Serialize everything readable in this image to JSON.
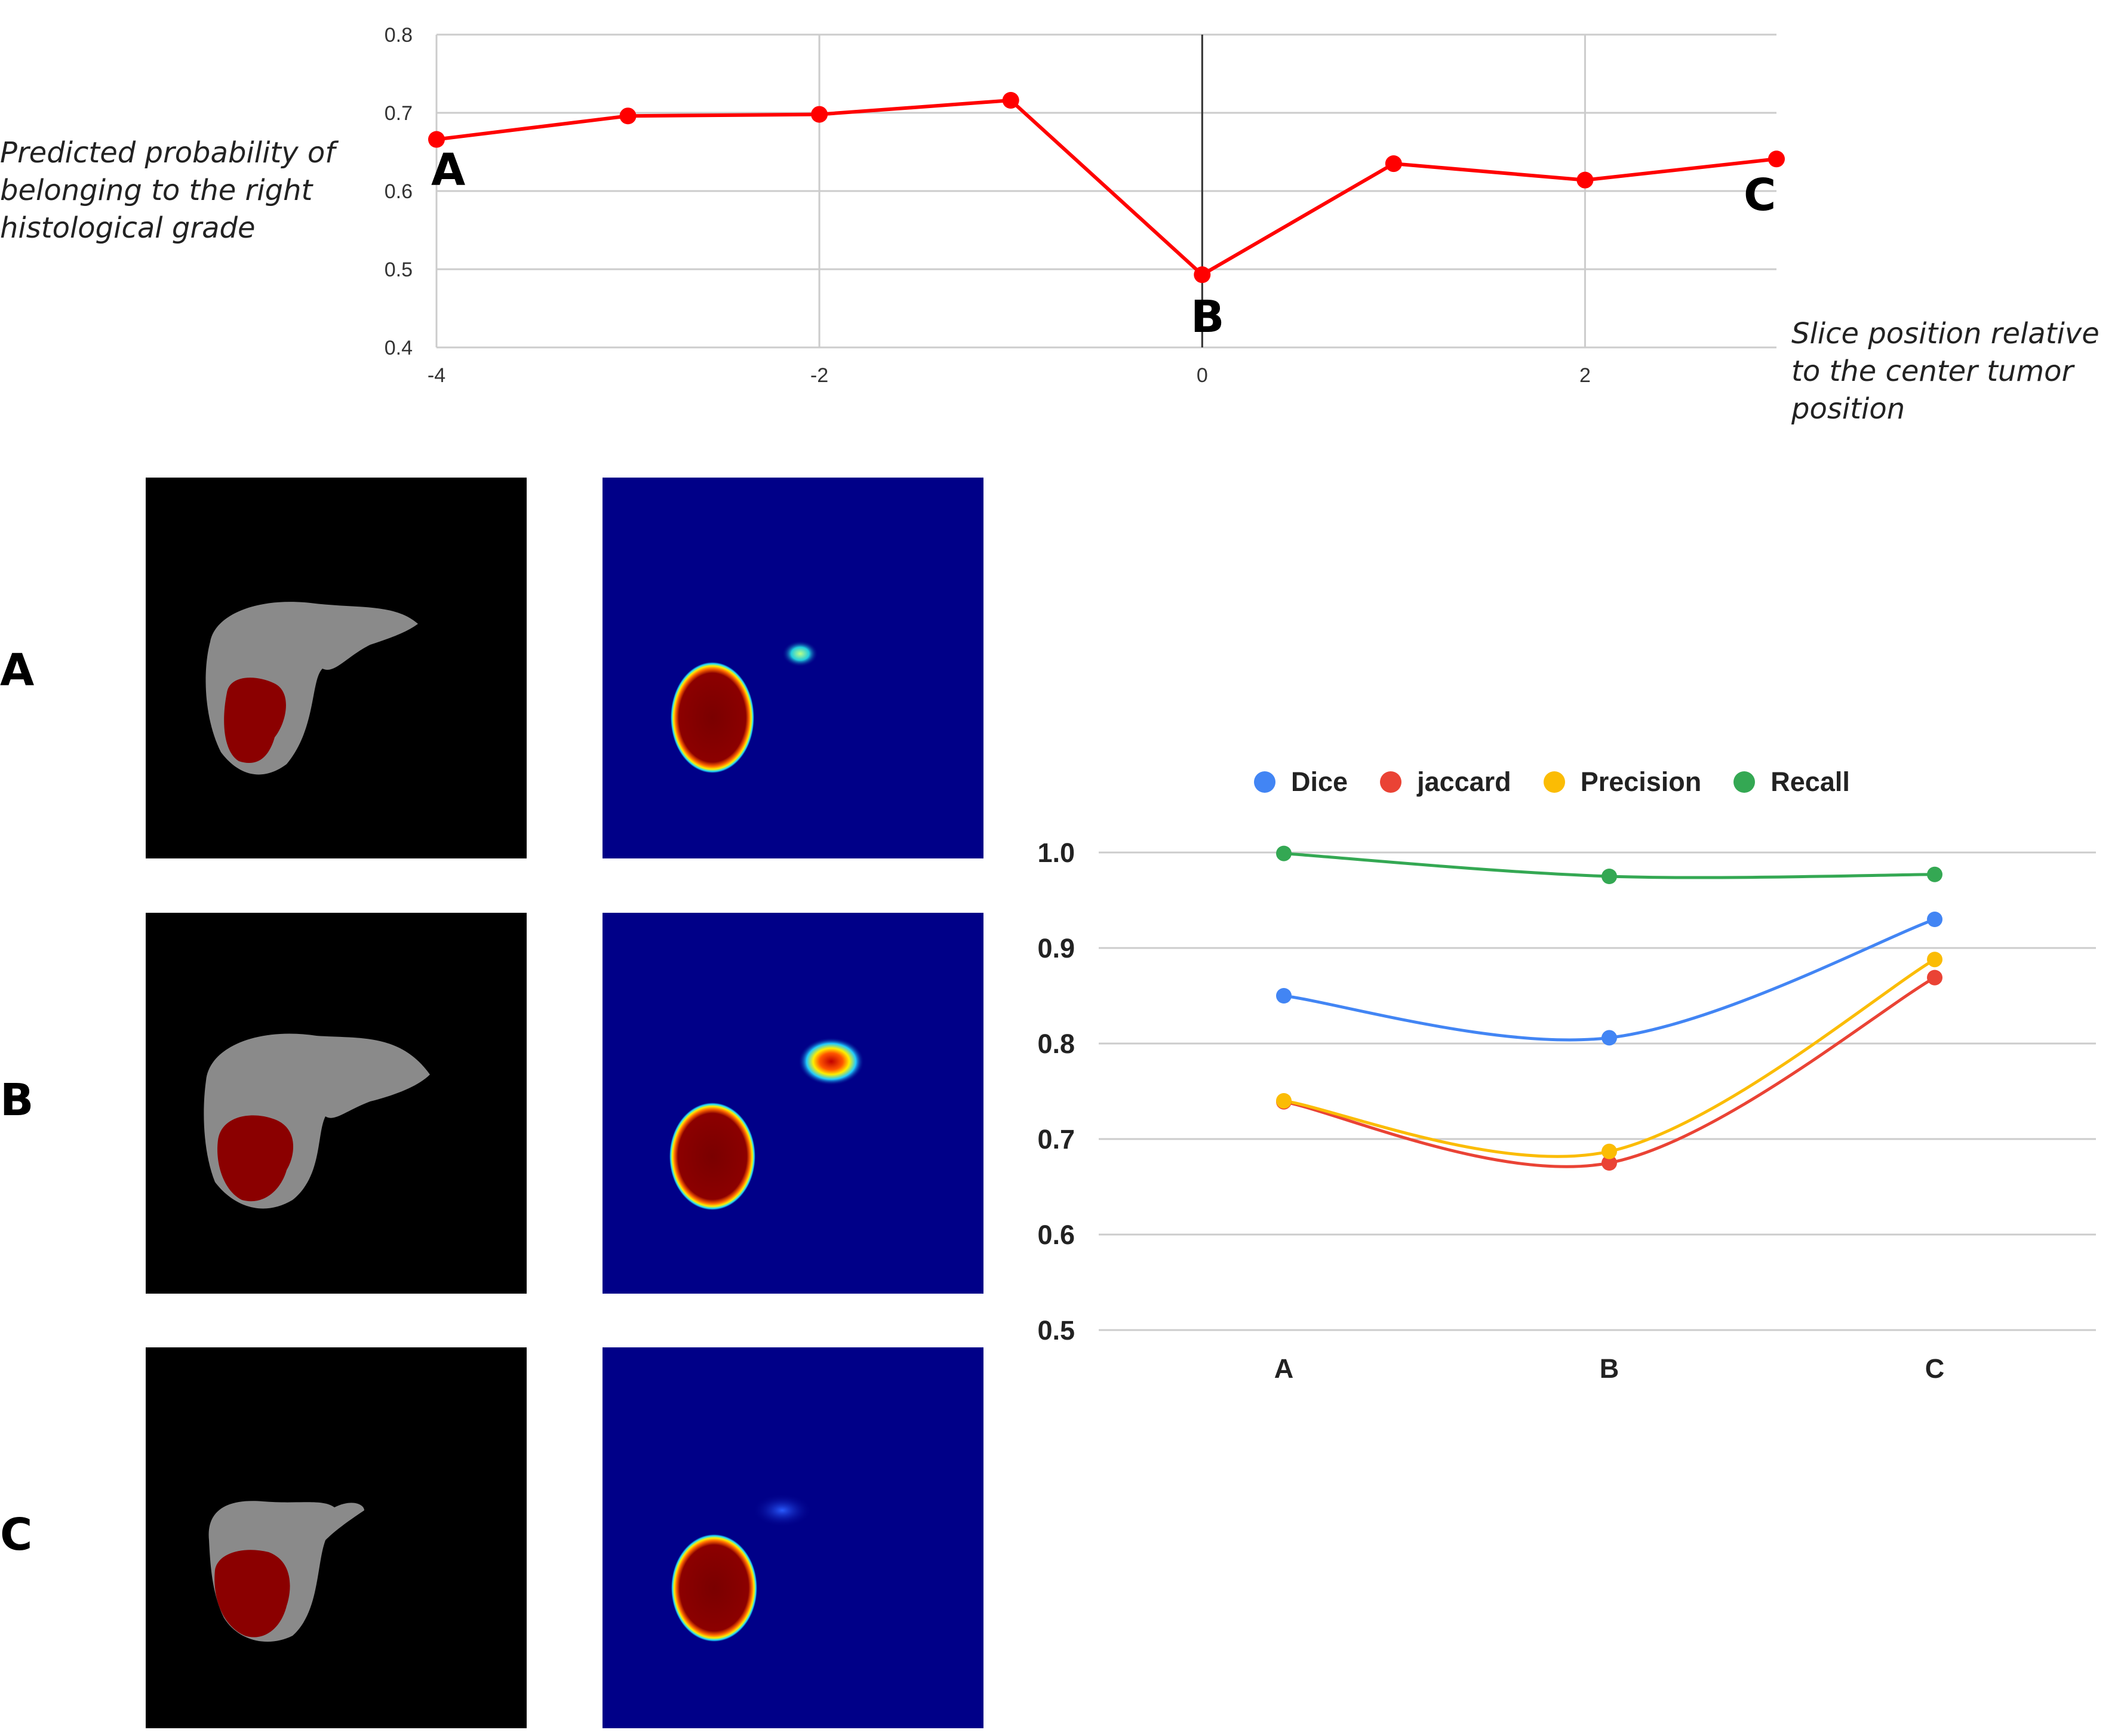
{
  "top_chart": {
    "ylabel": "Predicted probability of belonging to the right histological grade",
    "ylabel_lines": [
      "Predicted probability of",
      "belonging to the right",
      "histological grade"
    ],
    "xlabel_lines": [
      "Slice position relative",
      "to the center tumor",
      "position"
    ],
    "point_labels": [
      {
        "x": -4,
        "text": "A"
      },
      {
        "x": 0,
        "text": "B"
      },
      {
        "x": 3,
        "text": "C"
      }
    ]
  },
  "panels": {
    "row_labels": [
      "A",
      "B",
      "C"
    ]
  },
  "chart_data": [
    {
      "type": "line",
      "title": "",
      "xlabel": "Slice position relative to the center tumor position",
      "ylabel": "Predicted probability of belonging to the right histological grade",
      "x": [
        -4,
        -3,
        -2,
        -1,
        0,
        1,
        2,
        3
      ],
      "series": [
        {
          "values": [
            0.666,
            0.696,
            0.698,
            0.716,
            0.493,
            0.635,
            0.614,
            0.641
          ],
          "color": "#ff0000"
        }
      ],
      "xlim": [
        -4,
        3
      ],
      "ylim": [
        0.4,
        0.8
      ],
      "xticks": [
        -4,
        -2,
        0,
        2
      ],
      "xtick_labels": [
        "-4",
        "-2",
        "0",
        "2"
      ],
      "yticks": [
        0.4,
        0.5,
        0.6,
        0.7,
        0.8
      ],
      "ytick_labels": [
        "0.4",
        "0.5",
        "0.6",
        "0.7",
        "0.8"
      ],
      "grid": true,
      "reference_line_x": 0
    },
    {
      "type": "line",
      "title": "",
      "xlabel": "",
      "ylabel": "",
      "categories": [
        "A",
        "B",
        "C"
      ],
      "series": [
        {
          "name": "Dice",
          "values": [
            0.85,
            0.806,
            0.93
          ],
          "color": "#4285f4"
        },
        {
          "name": "jaccard",
          "values": [
            0.739,
            0.675,
            0.869
          ],
          "color": "#ea4335"
        },
        {
          "name": "Precision",
          "values": [
            0.74,
            0.687,
            0.888
          ],
          "color": "#fbbc04"
        },
        {
          "name": "Recall",
          "values": [
            0.999,
            0.975,
            0.977
          ],
          "color": "#34a853"
        }
      ],
      "ylim": [
        0.5,
        1.0
      ],
      "yticks": [
        0.5,
        0.6,
        0.7,
        0.8,
        0.9,
        1.0
      ],
      "ytick_labels": [
        "0.5",
        "0.6",
        "0.7",
        "0.8",
        "0.9",
        "1.0"
      ],
      "legend": "top",
      "grid": true,
      "smooth": true
    }
  ]
}
